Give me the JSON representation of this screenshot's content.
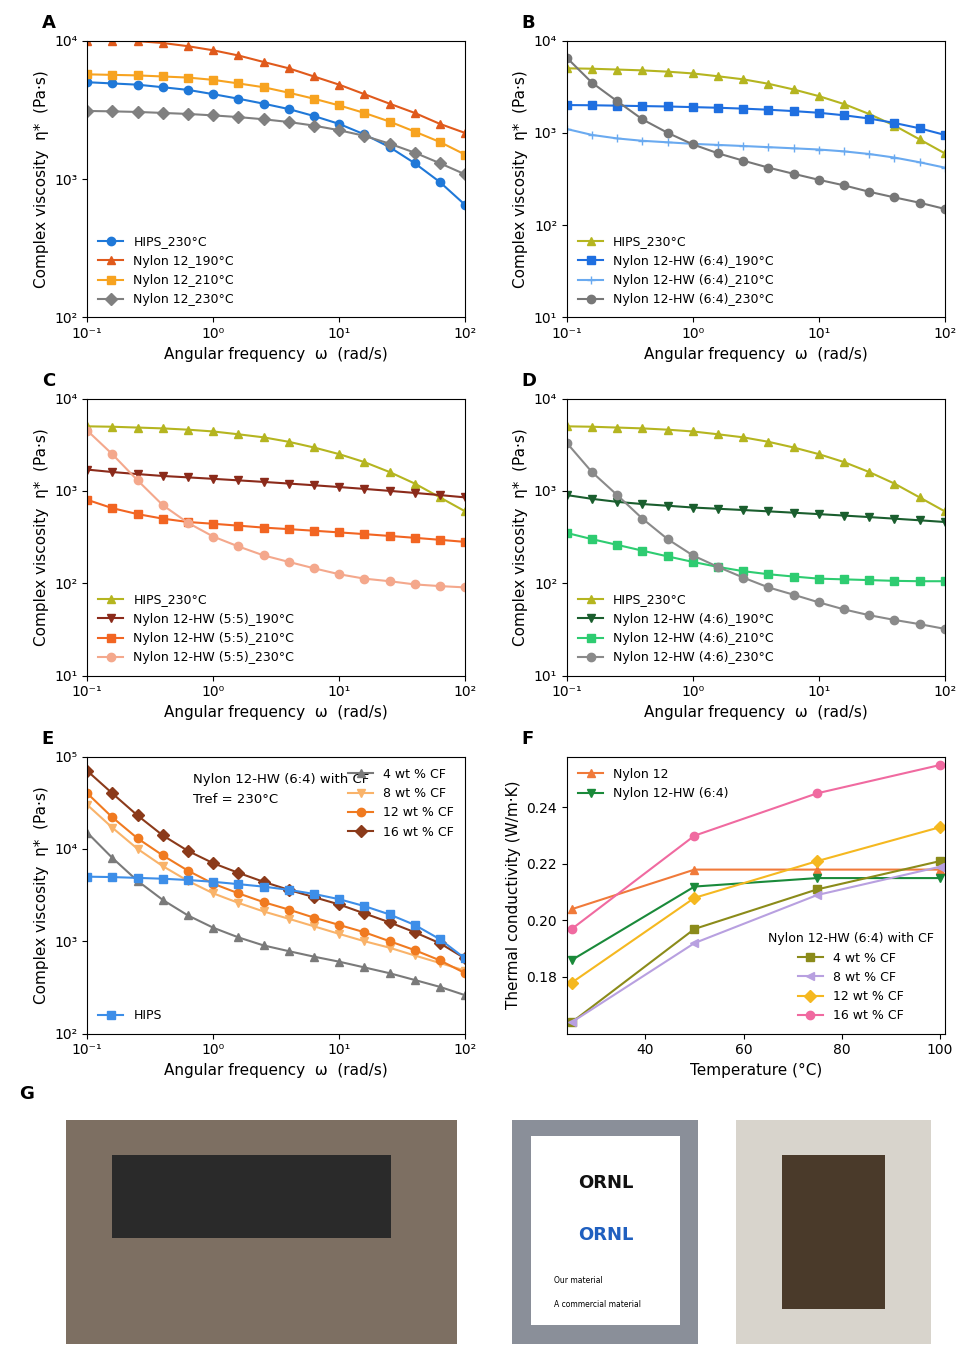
{
  "chart_data": [
    {
      "panel": "A",
      "type": "line",
      "log": true,
      "legend": "lower left",
      "xlabel": "Angular frequency  ω  (rad/s)",
      "ylabel": "Complex viscosity  η*  (Pa·s)",
      "xlim": [
        0.1,
        100
      ],
      "ylim": [
        100,
        10000
      ],
      "xticks": [
        {
          "value": 0.1,
          "label": "10⁻¹"
        },
        {
          "value": 1,
          "label": "10⁰"
        },
        {
          "value": 10,
          "label": "10¹"
        },
        {
          "value": 100,
          "label": "10²"
        }
      ],
      "yticks": [
        {
          "value": 100,
          "label": "10²"
        },
        {
          "value": 1000,
          "label": "10³"
        },
        {
          "value": 10000,
          "label": "10⁴"
        }
      ],
      "x": [
        0.1,
        0.158,
        0.251,
        0.398,
        0.631,
        1,
        1.585,
        2.512,
        3.981,
        6.31,
        10,
        15.85,
        25.12,
        39.81,
        63.1,
        100
      ],
      "series": [
        {
          "name": "HIPS_230°C",
          "color": "#1f78d8",
          "marker": "circle",
          "values": [
            5000,
            4900,
            4800,
            4600,
            4400,
            4100,
            3800,
            3500,
            3200,
            2850,
            2500,
            2100,
            1700,
            1300,
            950,
            650
          ]
        },
        {
          "name": "Nylon 12_190°C",
          "color": "#e05a1c",
          "marker": "triangle_up",
          "values": [
            10000,
            10000,
            9900,
            9600,
            9100,
            8500,
            7800,
            7000,
            6300,
            5500,
            4800,
            4100,
            3500,
            3000,
            2500,
            2150
          ]
        },
        {
          "name": "Nylon 12_210°C",
          "color": "#f7a320",
          "marker": "square",
          "values": [
            5700,
            5650,
            5600,
            5500,
            5400,
            5200,
            4900,
            4600,
            4200,
            3800,
            3400,
            3000,
            2600,
            2200,
            1850,
            1500
          ]
        },
        {
          "name": "Nylon 12_230°C",
          "color": "#808080",
          "marker": "diamond",
          "values": [
            3100,
            3080,
            3050,
            3000,
            2950,
            2880,
            2800,
            2700,
            2580,
            2430,
            2250,
            2050,
            1800,
            1550,
            1300,
            1080
          ]
        }
      ]
    },
    {
      "panel": "B",
      "type": "line",
      "log": true,
      "legend": "lower left",
      "xlabel": "Angular frequency  ω  (rad/s)",
      "ylabel": "Complex viscosity  η*  (Pa·s)",
      "xlim": [
        0.1,
        100
      ],
      "ylim": [
        10,
        10000
      ],
      "xticks": [
        {
          "value": 0.1,
          "label": "10⁻¹"
        },
        {
          "value": 1,
          "label": "10⁰"
        },
        {
          "value": 10,
          "label": "10¹"
        },
        {
          "value": 100,
          "label": "10²"
        }
      ],
      "yticks": [
        {
          "value": 10,
          "label": "10¹"
        },
        {
          "value": 100,
          "label": "10²"
        },
        {
          "value": 1000,
          "label": "10³"
        },
        {
          "value": 10000,
          "label": "10⁴"
        }
      ],
      "x": [
        0.1,
        0.158,
        0.251,
        0.398,
        0.631,
        1,
        1.585,
        2.512,
        3.981,
        6.31,
        10,
        15.85,
        25.12,
        39.81,
        63.1,
        100
      ],
      "series": [
        {
          "name": "HIPS_230°C",
          "color": "#b5b520",
          "marker": "triangle_up",
          "values": [
            5000,
            4950,
            4850,
            4750,
            4600,
            4400,
            4100,
            3800,
            3400,
            2950,
            2500,
            2050,
            1600,
            1200,
            850,
            600
          ]
        },
        {
          "name": "Nylon 12-HW (6:4)_190°C",
          "color": "#1f6fe0",
          "marker": "square",
          "values": [
            2000,
            1990,
            1970,
            1950,
            1930,
            1900,
            1870,
            1830,
            1780,
            1720,
            1650,
            1550,
            1430,
            1280,
            1120,
            950
          ]
        },
        {
          "name": "Nylon 12-HW (6:4)_210°C",
          "color": "#6aaaf0",
          "marker": "plus",
          "values": [
            1100,
            950,
            870,
            820,
            790,
            760,
            740,
            720,
            700,
            680,
            660,
            630,
            590,
            540,
            480,
            420
          ]
        },
        {
          "name": "Nylon 12-HW (6:4)_230°C",
          "color": "#777777",
          "marker": "circle",
          "values": [
            6500,
            3500,
            2200,
            1400,
            1000,
            750,
            600,
            500,
            420,
            360,
            310,
            270,
            230,
            200,
            175,
            150
          ]
        }
      ]
    },
    {
      "panel": "C",
      "type": "line",
      "log": true,
      "legend": "lower left",
      "xlabel": "Angular frequency  ω  (rad/s)",
      "ylabel": "Complex viscosity  η*  (Pa·s)",
      "xlim": [
        0.1,
        100
      ],
      "ylim": [
        10,
        10000
      ],
      "xticks": [
        {
          "value": 0.1,
          "label": "10⁻¹"
        },
        {
          "value": 1,
          "label": "10⁰"
        },
        {
          "value": 10,
          "label": "10¹"
        },
        {
          "value": 100,
          "label": "10²"
        }
      ],
      "yticks": [
        {
          "value": 10,
          "label": "10¹"
        },
        {
          "value": 100,
          "label": "10²"
        },
        {
          "value": 1000,
          "label": "10³"
        },
        {
          "value": 10000,
          "label": "10⁴"
        }
      ],
      "x": [
        0.1,
        0.158,
        0.251,
        0.398,
        0.631,
        1,
        1.585,
        2.512,
        3.981,
        6.31,
        10,
        15.85,
        25.12,
        39.81,
        63.1,
        100
      ],
      "series": [
        {
          "name": "HIPS_230°C",
          "color": "#b5b520",
          "marker": "triangle_up",
          "values": [
            5000,
            4950,
            4850,
            4750,
            4600,
            4400,
            4100,
            3800,
            3400,
            2950,
            2500,
            2050,
            1600,
            1200,
            850,
            600
          ]
        },
        {
          "name": "Nylon 12-HW (5:5)_190°C",
          "color": "#8b2a1a",
          "marker": "triangle_down",
          "values": [
            1700,
            1600,
            1520,
            1450,
            1400,
            1350,
            1300,
            1250,
            1200,
            1150,
            1100,
            1050,
            1000,
            950,
            900,
            850
          ]
        },
        {
          "name": "Nylon 12-HW (5:5)_210°C",
          "color": "#f26522",
          "marker": "square",
          "values": [
            800,
            650,
            560,
            500,
            460,
            440,
            420,
            400,
            385,
            370,
            355,
            340,
            325,
            310,
            295,
            280
          ]
        },
        {
          "name": "Nylon 12-HW (5:5)_230°C",
          "color": "#f4a88c",
          "marker": "circle",
          "values": [
            4500,
            2500,
            1300,
            700,
            450,
            320,
            250,
            200,
            170,
            145,
            125,
            112,
            105,
            97,
            93,
            90
          ]
        }
      ]
    },
    {
      "panel": "D",
      "type": "line",
      "log": true,
      "legend": "lower left",
      "xlabel": "Angular frequency  ω  (rad/s)",
      "ylabel": "Complex viscosity  η*  (Pa·s)",
      "xlim": [
        0.1,
        100
      ],
      "ylim": [
        10,
        10000
      ],
      "xticks": [
        {
          "value": 0.1,
          "label": "10⁻¹"
        },
        {
          "value": 1,
          "label": "10⁰"
        },
        {
          "value": 10,
          "label": "10¹"
        },
        {
          "value": 100,
          "label": "10²"
        }
      ],
      "yticks": [
        {
          "value": 10,
          "label": "10¹"
        },
        {
          "value": 100,
          "label": "10²"
        },
        {
          "value": 1000,
          "label": "10³"
        },
        {
          "value": 10000,
          "label": "10⁴"
        }
      ],
      "x": [
        0.1,
        0.158,
        0.251,
        0.398,
        0.631,
        1,
        1.585,
        2.512,
        3.981,
        6.31,
        10,
        15.85,
        25.12,
        39.81,
        63.1,
        100
      ],
      "series": [
        {
          "name": "HIPS_230°C",
          "color": "#b5b520",
          "marker": "triangle_up",
          "values": [
            5000,
            4950,
            4850,
            4750,
            4600,
            4400,
            4100,
            3800,
            3400,
            2950,
            2500,
            2050,
            1600,
            1200,
            850,
            600
          ]
        },
        {
          "name": "Nylon 12-HW (4:6)_190°C",
          "color": "#1a5e2e",
          "marker": "triangle_down",
          "values": [
            900,
            820,
            760,
            720,
            690,
            660,
            640,
            620,
            600,
            580,
            560,
            540,
            520,
            500,
            480,
            460
          ]
        },
        {
          "name": "Nylon 12-HW (4:6)_210°C",
          "color": "#2ecc71",
          "marker": "square",
          "values": [
            350,
            300,
            260,
            225,
            195,
            170,
            150,
            135,
            125,
            118,
            112,
            110,
            108,
            106,
            105,
            105
          ]
        },
        {
          "name": "Nylon 12-HW (4:6)_230°C",
          "color": "#8a8a8a",
          "marker": "circle",
          "values": [
            3300,
            1600,
            900,
            500,
            300,
            200,
            150,
            115,
            90,
            75,
            62,
            52,
            45,
            40,
            36,
            32
          ]
        }
      ]
    },
    {
      "panel": "E",
      "type": "line",
      "log": true,
      "xlabel": "Angular frequency  ω  (rad/s)",
      "ylabel": "Complex viscosity  η*  (Pa·s)",
      "annotations": [
        {
          "text": "Nylon 12-HW (6:4) with CF"
        },
        {
          "text": "Tref = 230°C"
        }
      ],
      "xlim": [
        0.1,
        100
      ],
      "ylim": [
        100,
        100000
      ],
      "xticks": [
        {
          "value": 0.1,
          "label": "10⁻¹"
        },
        {
          "value": 1,
          "label": "10⁰"
        },
        {
          "value": 10,
          "label": "10¹"
        },
        {
          "value": 100,
          "label": "10²"
        }
      ],
      "yticks": [
        {
          "value": 100,
          "label": "10²"
        },
        {
          "value": 1000,
          "label": "10³"
        },
        {
          "value": 10000,
          "label": "10⁴"
        },
        {
          "value": 100000,
          "label": "10⁵"
        }
      ],
      "x": [
        0.1,
        0.158,
        0.251,
        0.398,
        0.631,
        1,
        1.585,
        2.512,
        3.981,
        6.31,
        10,
        15.85,
        25.12,
        39.81,
        63.1,
        100
      ],
      "series": [
        {
          "name": "4 wt % CF",
          "color": "#7a7a7a",
          "marker": "triangle_up",
          "legend": "upper right",
          "values": [
            15000,
            8000,
            4500,
            2800,
            1900,
            1400,
            1100,
            900,
            780,
            680,
            600,
            520,
            450,
            380,
            320,
            260
          ]
        },
        {
          "name": "8 wt % CF",
          "color": "#f9b36a",
          "marker": "triangle_down",
          "legend": "upper right",
          "values": [
            30000,
            17000,
            10000,
            6500,
            4500,
            3300,
            2600,
            2100,
            1750,
            1450,
            1200,
            1000,
            850,
            700,
            580,
            480
          ]
        },
        {
          "name": "12 wt % CF",
          "color": "#f07a20",
          "marker": "circle",
          "legend": "upper right",
          "values": [
            40000,
            22000,
            13000,
            8500,
            5800,
            4200,
            3300,
            2650,
            2200,
            1800,
            1500,
            1250,
            1000,
            800,
            620,
            450
          ]
        },
        {
          "name": "16 wt % CF",
          "color": "#8b3a1a",
          "marker": "diamond",
          "legend": "upper right",
          "values": [
            70000,
            40000,
            23000,
            14000,
            9500,
            7000,
            5500,
            4400,
            3600,
            3000,
            2500,
            2000,
            1600,
            1250,
            950,
            650
          ]
        },
        {
          "name": "HIPS",
          "color": "#3d8ee8",
          "marker": "square",
          "legend": "lower left",
          "values": [
            5000,
            4950,
            4850,
            4750,
            4600,
            4400,
            4150,
            3900,
            3600,
            3250,
            2850,
            2400,
            1950,
            1500,
            1050,
            650
          ]
        }
      ]
    },
    {
      "panel": "F",
      "type": "line",
      "xlabel": "Temperature (°C)",
      "ylabel": "Thermal conductivity (W/m·K)",
      "annotations": [
        {
          "text": "Nylon 12-HW (6:4) with CF",
          "legend": "lower right"
        }
      ],
      "xlim": [
        24,
        101
      ],
      "ylim": [
        0.16,
        0.258
      ],
      "xticks": [
        40,
        60,
        80,
        100
      ],
      "yticks": [
        {
          "value": 0.18,
          "label": "0.18"
        },
        {
          "value": 0.2,
          "label": "0.20"
        },
        {
          "value": 0.22,
          "label": "0.22"
        },
        {
          "value": 0.24,
          "label": "0.24"
        }
      ],
      "x": [
        25,
        50,
        75,
        100
      ],
      "series": [
        {
          "name": "Nylon 12",
          "color": "#f07a3a",
          "marker": "triangle_up",
          "legend": "upper left",
          "values": [
            0.204,
            0.218,
            0.218,
            0.218
          ]
        },
        {
          "name": "Nylon 12-HW (6:4)",
          "color": "#1a8a3a",
          "marker": "triangle_down",
          "legend": "upper left",
          "values": [
            0.186,
            0.212,
            0.215,
            0.215
          ]
        },
        {
          "name": "4 wt % CF",
          "color": "#8b8b1a",
          "marker": "square",
          "legend": "lower right",
          "values": [
            0.164,
            0.197,
            0.211,
            0.221
          ]
        },
        {
          "name": "8 wt % CF",
          "color": "#b8a0e0",
          "marker": "triangle_left",
          "legend": "lower right",
          "values": [
            0.164,
            0.192,
            0.209,
            0.219
          ]
        },
        {
          "name": "12 wt % CF",
          "color": "#f5b820",
          "marker": "diamond",
          "legend": "lower right",
          "values": [
            0.178,
            0.208,
            0.221,
            0.233
          ]
        },
        {
          "name": "16 wt % CF",
          "color": "#f06aa0",
          "marker": "circle",
          "legend": "lower right",
          "values": [
            0.197,
            0.23,
            0.245,
            0.255
          ]
        }
      ]
    }
  ],
  "photo_panel": {
    "panel": "G",
    "texts": [
      "ORNL",
      "ORNL",
      "Our material",
      "A commercial material"
    ]
  }
}
